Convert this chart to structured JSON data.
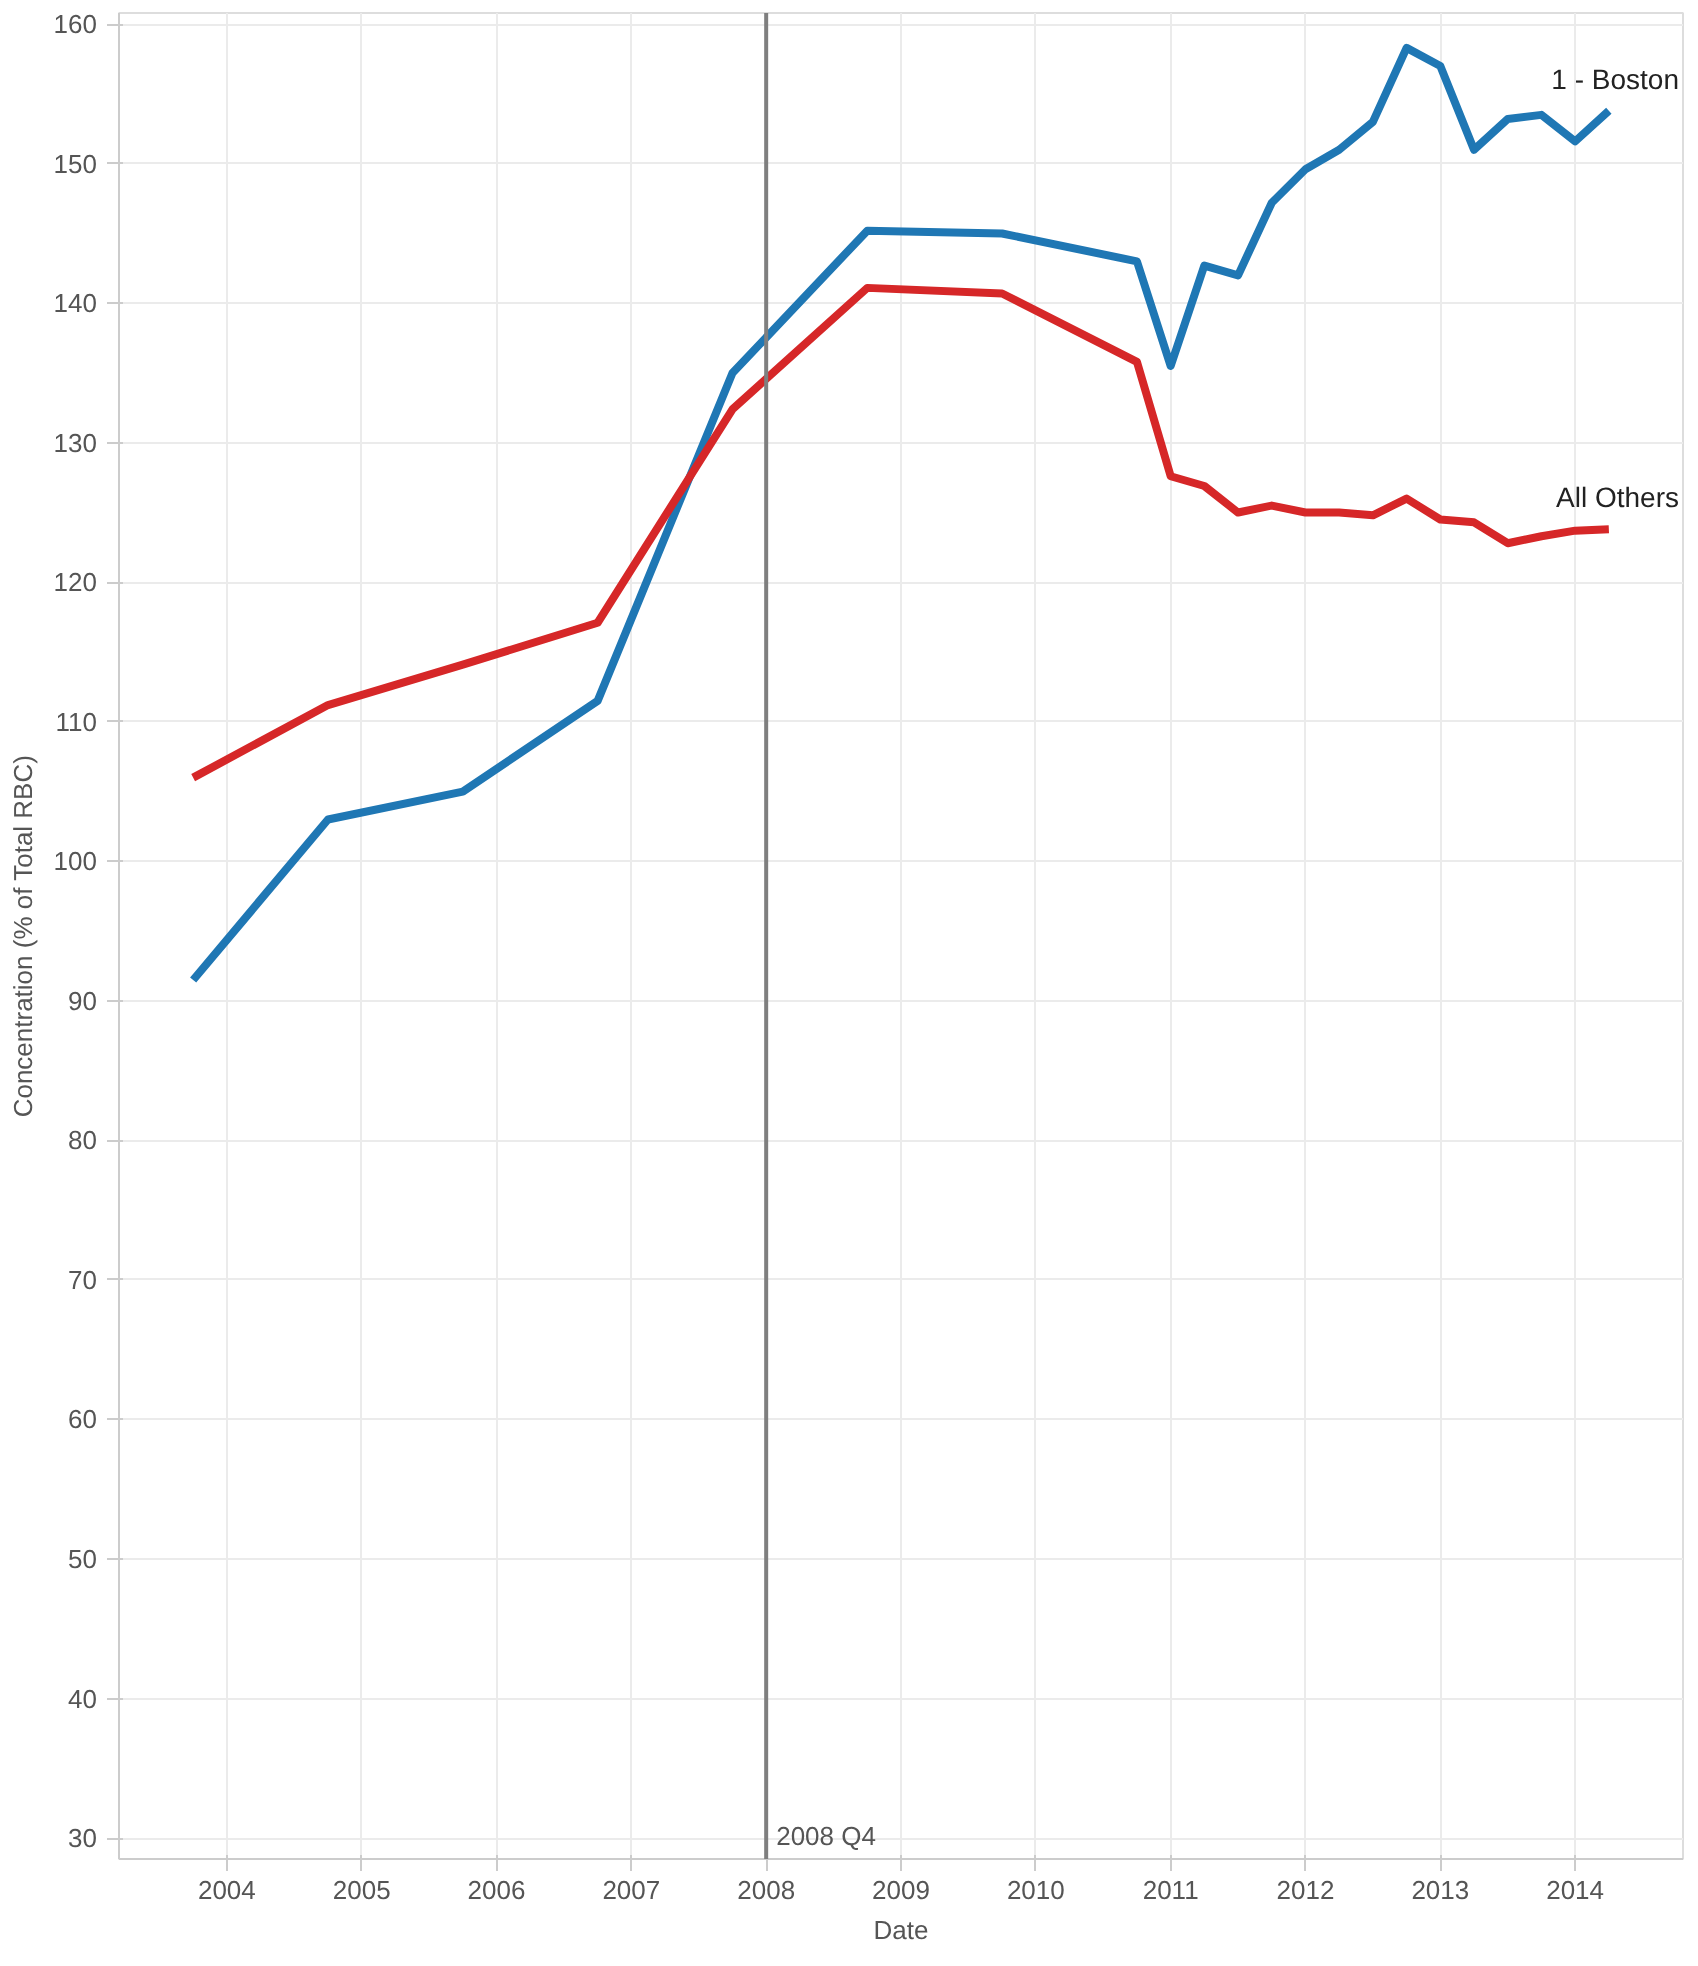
{
  "chart_data": {
    "type": "line",
    "xlabel": "Date",
    "ylabel": "Concentration (% of Total RBC)",
    "xlim": [
      2003.2,
      2014.8
    ],
    "xticks": [
      2004,
      2005,
      2006,
      2007,
      2008,
      2009,
      2010,
      2011,
      2012,
      2013,
      2014
    ],
    "ylim": [
      28.5,
      160.8
    ],
    "yticks": [
      30,
      40,
      50,
      60,
      70,
      80,
      90,
      100,
      110,
      120,
      130,
      140,
      150,
      160
    ],
    "grid": true,
    "legend": false,
    "line_style": "solid",
    "marker": "none",
    "ref_lines": [
      {
        "axis": "x",
        "value": 2008,
        "label": "2008 Q4",
        "color": "#7f7f7f"
      }
    ],
    "series": [
      {
        "name": "1 - Boston",
        "color": "#1f77b4",
        "x": [
          2003.75,
          2004.75,
          2005.75,
          2006.75,
          2007.75,
          2008.75,
          2009.75,
          2010.75,
          2011.0,
          2011.25,
          2011.5,
          2011.75,
          2012.0,
          2012.25,
          2012.5,
          2012.75,
          2013.0,
          2013.25,
          2013.5,
          2013.75,
          2014.0,
          2014.25
        ],
        "values": [
          91.5,
          103,
          105,
          111.5,
          135,
          145.2,
          145,
          143,
          135.5,
          142.7,
          142,
          147.2,
          149.6,
          151,
          153,
          158.3,
          157,
          151,
          153.2,
          153.5,
          151.6,
          153.8
        ]
      },
      {
        "name": "All Others",
        "color": "#d62728",
        "x": [
          2003.75,
          2004.75,
          2005.75,
          2006.75,
          2007.75,
          2008.75,
          2009.75,
          2010.75,
          2011.0,
          2011.25,
          2011.5,
          2011.75,
          2012.0,
          2012.25,
          2012.5,
          2012.75,
          2013.0,
          2013.25,
          2013.5,
          2013.75,
          2014.0,
          2014.25
        ],
        "values": [
          106,
          111.2,
          114.1,
          117.1,
          132.4,
          141.1,
          140.7,
          135.8,
          127.6,
          126.9,
          125,
          125.5,
          125,
          125,
          124.8,
          126,
          124.5,
          124.3,
          122.8,
          123.3,
          123.7,
          123.8
        ]
      }
    ]
  }
}
